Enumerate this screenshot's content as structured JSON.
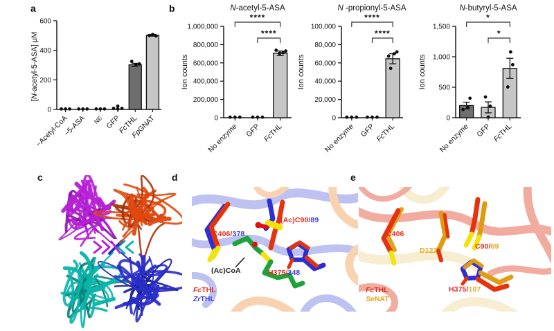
{
  "panels": {
    "a": "a",
    "b": "b",
    "c": "c",
    "d": "d",
    "e": "e"
  },
  "colors": {
    "bar_light": "#c6c6c6",
    "bar_dark": "#6e6e6e",
    "axis": "#1a1a1a",
    "label_red": "#e8291c",
    "label_blue": "#3c3ce0",
    "label_gold": "#eda31b",
    "stick_red": "#e5330e",
    "stick_blue": "#2b2fd4",
    "stick_yellow": "#f2e30e",
    "stick_green": "#1ea33c",
    "stick_gold": "#e09c10",
    "stick_oxygen": "#e01010",
    "bg_blue": "#5560d8",
    "bg_orange": "#f08a35",
    "bg_red": "#e0482c",
    "bg_yellow": "#eeda9a",
    "subunit_magenta": "#b620d6",
    "subunit_magenta_dark": "#8912a6",
    "subunit_orange": "#e0490f",
    "subunit_orange_dark": "#a93207",
    "subunit_teal": "#0ab4a9",
    "subunit_teal_dark": "#067f78",
    "subunit_blue": "#2a2ec8",
    "subunit_blue_dark": "#191d94"
  },
  "chart_data": [
    {
      "panel": "a",
      "type": "bar",
      "ylabel_pre": "[",
      "ylabel_italic": "N",
      "ylabel_rest": "-acetyl-5-ASA] μM",
      "ylim": [
        0,
        600
      ],
      "yticks": [
        0,
        200,
        400,
        600
      ],
      "ytick_labels": [
        "0",
        "200",
        "400",
        "600"
      ],
      "categories": [
        {
          "text": "−Acetyl-CoA"
        },
        {
          "text": "−5-ASA"
        },
        {
          "text": "NE",
          "small": true
        },
        {
          "text": "GFP"
        },
        {
          "italic": "Fc",
          "text": "THL"
        },
        {
          "italic": "Fp",
          "text": "GNAT"
        }
      ],
      "values": [
        0,
        0,
        0,
        0,
        302,
        502
      ],
      "errors": [
        0,
        0,
        0,
        0,
        10,
        6
      ],
      "bar_styles": [
        "none",
        "none",
        "none",
        "none",
        "dark",
        "light"
      ],
      "points": [
        [
          [
            -6,
            3
          ],
          [
            0,
            3
          ],
          [
            6,
            3
          ]
        ],
        [
          [
            -6,
            3
          ],
          [
            0,
            3
          ],
          [
            6,
            3
          ]
        ],
        [
          [
            -6,
            3
          ],
          [
            0,
            3
          ],
          [
            6,
            3
          ]
        ],
        [
          [
            -6,
            7
          ],
          [
            0,
            22
          ],
          [
            6,
            7
          ],
          [
            0,
            3
          ]
        ],
        [
          [
            -5,
            325
          ],
          [
            1,
            303
          ],
          [
            6,
            308
          ]
        ],
        [
          [
            -5,
            500
          ],
          [
            0,
            507
          ],
          [
            5,
            497
          ]
        ]
      ],
      "significance": []
    },
    {
      "panel": "b1",
      "type": "bar",
      "title_italic": "N",
      "title_rest": "-acetyl-5-ASA",
      "ylabel_rest": "Ion counts",
      "ylim": [
        0,
        1000000
      ],
      "yticks": [
        0,
        200000,
        400000,
        600000,
        800000,
        1000000
      ],
      "ytick_labels": [
        "0",
        "200,000",
        "400,000",
        "600,000",
        "800,000",
        "1,000,000"
      ],
      "categories": [
        {
          "text": "No enzyme"
        },
        {
          "text": "GFP"
        },
        {
          "italic": "Fc",
          "text": "THL"
        }
      ],
      "values": [
        0,
        0,
        705000
      ],
      "errors": [
        0,
        0,
        25000
      ],
      "bar_styles": [
        "none",
        "none",
        "light"
      ],
      "points": [
        [
          [
            -7,
            6000
          ],
          [
            0,
            6000
          ],
          [
            7,
            6000
          ]
        ],
        [
          [
            -7,
            6000
          ],
          [
            0,
            6000
          ],
          [
            7,
            6000
          ]
        ],
        [
          [
            -6,
            738000
          ],
          [
            -1,
            705000
          ],
          [
            4,
            712000
          ],
          [
            8,
            730000
          ]
        ]
      ],
      "significance": [
        {
          "a": 0,
          "b": 2,
          "label": "****",
          "level": 0
        },
        {
          "a": 1,
          "b": 2,
          "label": "****",
          "level": 1
        }
      ]
    },
    {
      "panel": "b2",
      "type": "bar",
      "title_italic": "N",
      "title_rest": " -propionyl-5-ASA",
      "ylabel_rest": "Ion counts",
      "ylim": [
        0,
        100000
      ],
      "yticks": [
        0,
        20000,
        40000,
        60000,
        80000,
        100000
      ],
      "ytick_labels": [
        "0",
        "20,000",
        "40,000",
        "60,000",
        "80,000",
        "100,000"
      ],
      "categories": [
        {
          "text": "No enzyme"
        },
        {
          "text": "GFP"
        },
        {
          "italic": "Fc",
          "text": "THL"
        }
      ],
      "values": [
        0,
        0,
        64500
      ],
      "errors": [
        0,
        0,
        5500
      ],
      "bar_styles": [
        "none",
        "none",
        "light"
      ],
      "points": [
        [
          [
            -7,
            600
          ],
          [
            0,
            600
          ],
          [
            7,
            600
          ]
        ],
        [
          [
            -7,
            600
          ],
          [
            0,
            600
          ],
          [
            7,
            600
          ]
        ],
        [
          [
            -3,
            54000
          ],
          [
            -6,
            67500
          ],
          [
            2,
            70000
          ],
          [
            6,
            72000
          ]
        ]
      ],
      "significance": [
        {
          "a": 0,
          "b": 2,
          "label": "****",
          "level": 0
        },
        {
          "a": 1,
          "b": 2,
          "label": "****",
          "level": 1
        }
      ]
    },
    {
      "panel": "b3",
      "type": "bar",
      "title_italic": "N",
      "title_rest": "-butyryl-5-ASA",
      "ylabel_rest": "Ion counts",
      "ylim": [
        0,
        1500
      ],
      "yticks": [
        0,
        500,
        1000,
        1500
      ],
      "ytick_labels": [
        "0",
        "500",
        "1,000",
        "1,500"
      ],
      "categories": [
        {
          "text": "No enzyme"
        },
        {
          "text": "GFP"
        },
        {
          "italic": "Fc",
          "text": "THL"
        }
      ],
      "values": [
        200,
        170,
        810
      ],
      "errors": [
        55,
        90,
        165
      ],
      "bar_styles": [
        "dark",
        "light",
        "light"
      ],
      "points": [
        [
          [
            -5,
            135
          ],
          [
            2,
            175
          ],
          [
            5,
            320
          ]
        ],
        [
          [
            -4,
            340
          ],
          [
            3,
            190
          ],
          [
            0,
            12
          ]
        ],
        [
          [
            -3,
            505
          ],
          [
            4,
            870
          ],
          [
            1,
            1080
          ]
        ]
      ],
      "significance": [
        {
          "a": 0,
          "b": 2,
          "label": "*",
          "level": 0
        },
        {
          "a": 1,
          "b": 2,
          "label": "*",
          "level": 1
        }
      ]
    }
  ],
  "panel_c": {
    "subunits": [
      {
        "name": "subunit-magenta",
        "color": "#b620d6",
        "dark": "#8912a6"
      },
      {
        "name": "subunit-orange",
        "color": "#e0490f",
        "dark": "#a93207"
      },
      {
        "name": "subunit-teal",
        "color": "#0ab4a9",
        "dark": "#067f78"
      },
      {
        "name": "subunit-blue",
        "color": "#2a2ec8",
        "dark": "#191d94"
      }
    ]
  },
  "panel_d": {
    "labels": {
      "c406": {
        "main": "C406",
        "sep": "/",
        "alt": "378"
      },
      "c90": {
        "main": "(Ac)C90",
        "sep": "/",
        "alt": "89"
      },
      "coa": {
        "main": "(Ac)CoA"
      },
      "h375": {
        "main": "H375",
        "sep": "/",
        "alt": "348"
      }
    },
    "legend": [
      {
        "italic": "Fc",
        "text": "THL"
      },
      {
        "italic": "Zr",
        "text": "THL"
      }
    ]
  },
  "panel_e": {
    "labels": {
      "c406": {
        "main": "C406"
      },
      "d122": {
        "main": "D122"
      },
      "c90": {
        "main": "C90",
        "sep": "/",
        "alt": "69"
      },
      "h375": {
        "main": "H375",
        "sep": "/",
        "alt": "107"
      }
    },
    "legend": [
      {
        "italic": "Fc",
        "text": "THL"
      },
      {
        "italic": "Se",
        "text": "NAT"
      }
    ]
  }
}
